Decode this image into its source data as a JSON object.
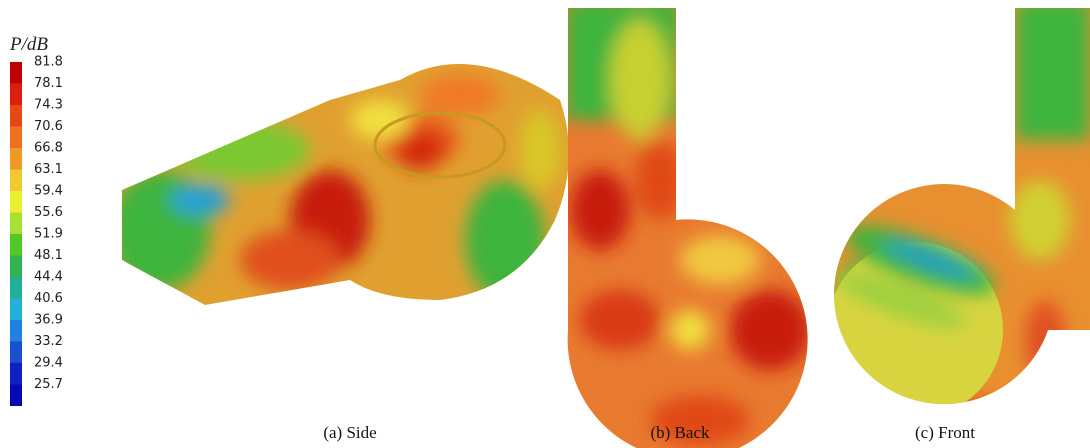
{
  "legend": {
    "title": "P/dB",
    "levels": [
      81.8,
      78.1,
      74.3,
      70.6,
      66.8,
      63.1,
      59.4,
      55.6,
      51.9,
      48.1,
      44.4,
      40.6,
      36.9,
      33.2,
      29.4,
      25.7
    ]
  },
  "captions": [
    "(a) Side",
    "(b) Back",
    "(c) Front"
  ]
}
